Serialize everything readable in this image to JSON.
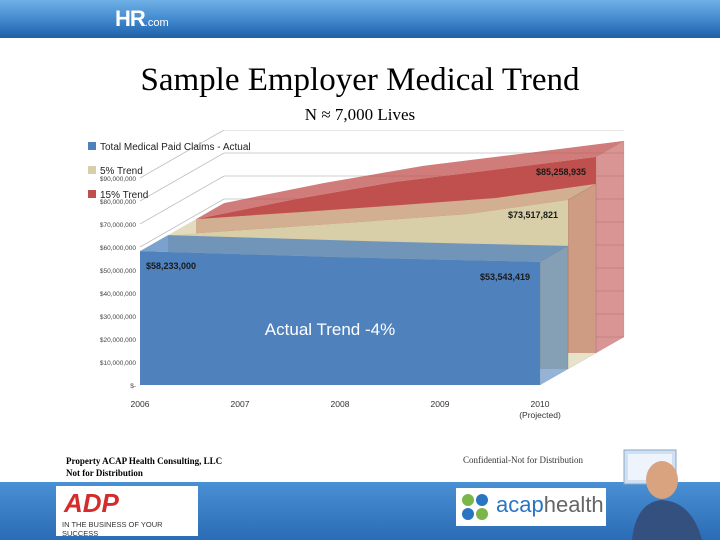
{
  "header": {
    "logo_main": "HR",
    "logo_suffix": ".com"
  },
  "slide": {
    "title": "Sample Employer Medical Trend",
    "subtitle": "N ≈ 7,000 Lives"
  },
  "chart_data": {
    "type": "area",
    "categories": [
      "2006",
      "2007",
      "2008",
      "2009",
      "2010"
    ],
    "category_sublabels": [
      "",
      "",
      "",
      "",
      "(Projected)"
    ],
    "ylim": [
      0,
      100000000
    ],
    "yticks": [
      0,
      10000000,
      20000000,
      30000000,
      40000000,
      50000000,
      60000000,
      70000000,
      80000000,
      90000000
    ],
    "ytick_labels": [
      "$-",
      "$10,000,000",
      "$20,000,000",
      "$30,000,000",
      "$40,000,000",
      "$50,000,000",
      "$60,000,000",
      "$70,000,000",
      "$80,000,000",
      "$90,000,000"
    ],
    "legend_position": "top-left",
    "grid": true,
    "series": [
      {
        "name": "Total Medical Paid Claims - Actual",
        "values": [
          58233000,
          56900000,
          55600000,
          54500000,
          53543419
        ],
        "color": "#4f81bd"
      },
      {
        "name": "5% Trend",
        "values": [
          58233000,
          61144650,
          64201883,
          67411977,
          73517821
        ],
        "color": "#d8cfa8"
      },
      {
        "name": "15% Trend",
        "values": [
          58233000,
          66967950,
          74470000,
          79800000,
          85258935
        ],
        "color": "#c0504d"
      }
    ],
    "data_labels": [
      {
        "text": "$58,233,000",
        "series": 0,
        "category": "2006"
      },
      {
        "text": "$53,543,419",
        "series": 0,
        "category": "2010"
      },
      {
        "text": "$73,517,821",
        "series": 1,
        "category": "2010"
      },
      {
        "text": "$85,258,935",
        "series": 2,
        "category": "2010"
      }
    ],
    "annotation": "Actual  Trend -4%"
  },
  "footer": {
    "left_line1": "Property ACAP Health Consulting, LLC",
    "left_line2": "Not for Distribution",
    "right": "Confidential-Not for Distribution"
  },
  "logos": {
    "adp": "ADP",
    "adp_tagline": "IN THE BUSINESS OF YOUR SUCCESS",
    "acap_a": "acap",
    "acap_b": "health"
  },
  "colors": {
    "header_blue": "#3f86cc",
    "actual": "#4f81bd",
    "trend5": "#d8cfa8",
    "trend15": "#c0504d",
    "adp_red": "#d42b2b"
  }
}
